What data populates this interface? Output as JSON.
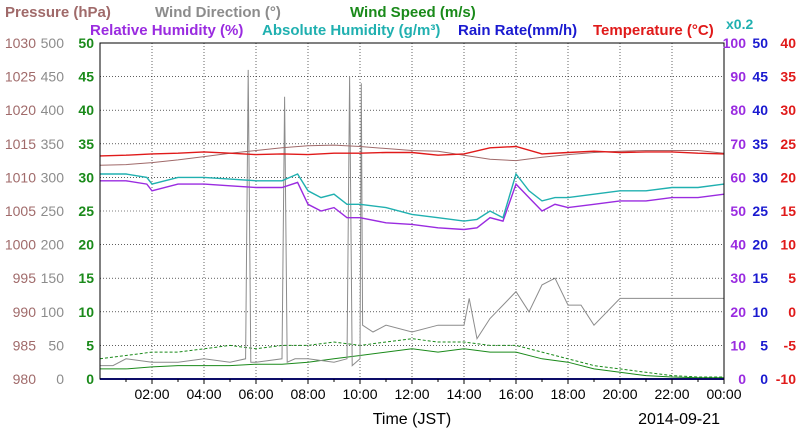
{
  "header": {
    "row1": [
      {
        "key": "pressure",
        "text": "Pressure (hPa)",
        "color": "#a06a6a"
      },
      {
        "key": "wind_direction",
        "text": "Wind Direction (°)",
        "color": "#8c8c8c"
      },
      {
        "key": "wind_speed",
        "text": "Wind Speed (m/s)",
        "color": "#1a8a1a"
      }
    ],
    "row2": [
      {
        "key": "relative_humidity",
        "text": "Relative Humidity (%)",
        "color": "#9a2be0"
      },
      {
        "key": "absolute_humidity",
        "text": "Absolute Humidity (g/m³)",
        "color": "#20b0b0"
      },
      {
        "key": "rain_rate",
        "text": "Rain Rate(mm/h)",
        "color": "#1a1ad0"
      },
      {
        "key": "temperature",
        "text": "Temperature (°C)",
        "color": "#e01a1a"
      }
    ],
    "abs_humidity_scale": {
      "text": "x0.2",
      "color": "#20b0b0"
    }
  },
  "x_axis": {
    "label": "Time (JST)",
    "date": "2014-09-21",
    "tick_labels": [
      "02:00",
      "04:00",
      "06:00",
      "08:00",
      "10:00",
      "12:00",
      "14:00",
      "16:00",
      "18:00",
      "20:00",
      "22:00",
      "00:00"
    ]
  },
  "left_axes": [
    {
      "key": "pressure",
      "color": "#a06a6a",
      "ticks": [
        "980",
        "985",
        "990",
        "995",
        "1000",
        "1005",
        "1010",
        "1015",
        "1020",
        "1025",
        "1030"
      ]
    },
    {
      "key": "wind_direction",
      "color": "#8c8c8c",
      "ticks": [
        "0",
        "50",
        "100",
        "150",
        "200",
        "250",
        "300",
        "350",
        "400",
        "450",
        "500"
      ]
    },
    {
      "key": "wind_speed",
      "color": "#1a8a1a",
      "ticks": [
        "0",
        "5",
        "10",
        "15",
        "20",
        "25",
        "30",
        "35",
        "40",
        "45",
        "50"
      ]
    }
  ],
  "right_axes": [
    {
      "key": "humidity",
      "color": "#9a2be0",
      "ticks": [
        "0",
        "10",
        "20",
        "30",
        "40",
        "50",
        "60",
        "70",
        "80",
        "90",
        "100"
      ]
    },
    {
      "key": "rain_rate",
      "color": "#1a1ad0",
      "ticks": [
        "0",
        "5",
        "10",
        "15",
        "20",
        "25",
        "30",
        "35",
        "40",
        "45",
        "50"
      ]
    },
    {
      "key": "temperature",
      "color": "#e01a1a",
      "ticks": [
        "-10",
        "-5",
        "0",
        "5",
        "10",
        "15",
        "20",
        "25",
        "30",
        "35",
        "40"
      ]
    }
  ],
  "chart_data": {
    "type": "line",
    "x_range": [
      "2014-09-21 00:00",
      "2014-09-22 00:00"
    ],
    "x_unit": "hour",
    "grid": true,
    "axes_ranges": {
      "pressure": [
        980,
        1030
      ],
      "wind_direction": [
        0,
        500
      ],
      "wind_speed": [
        0,
        50
      ],
      "humidity": [
        0,
        100
      ],
      "rain_rate": [
        0,
        50
      ],
      "temperature": [
        -10,
        40
      ]
    },
    "series": [
      {
        "name": "Temperature",
        "axis": "temperature",
        "color": "#e01a1a",
        "x": [
          0,
          1,
          2,
          3,
          4,
          5,
          6,
          7,
          8,
          9,
          10,
          11,
          12,
          13,
          14,
          15,
          16,
          17,
          18,
          19,
          20,
          21,
          22,
          23,
          24
        ],
        "y": [
          23.2,
          23.3,
          23.5,
          23.6,
          23.8,
          23.6,
          23.4,
          23.5,
          23.4,
          23.6,
          23.6,
          23.7,
          23.7,
          23.3,
          23.5,
          24.4,
          24.6,
          23.5,
          23.7,
          23.9,
          23.7,
          23.8,
          23.8,
          23.6,
          23.5
        ]
      },
      {
        "name": "Pressure",
        "axis": "pressure",
        "color": "#a06a6a",
        "x": [
          0,
          1,
          2,
          3,
          4,
          5,
          6,
          7,
          8,
          9,
          10,
          11,
          12,
          13,
          14,
          15,
          16,
          17,
          18,
          19,
          20,
          21,
          22,
          23,
          24
        ],
        "y": [
          1011.8,
          1011.9,
          1012.2,
          1012.6,
          1013.1,
          1013.6,
          1014.0,
          1014.4,
          1014.7,
          1014.8,
          1014.6,
          1014.3,
          1014.0,
          1013.9,
          1013.3,
          1012.7,
          1012.5,
          1013.0,
          1013.4,
          1013.7,
          1013.9,
          1014.0,
          1014.0,
          1014.0,
          1013.6
        ]
      },
      {
        "name": "Absolute Humidity",
        "axis": "humidity",
        "color": "#20b0b0",
        "x": [
          0,
          1,
          1.8,
          2,
          3,
          4,
          5,
          6,
          7,
          7.6,
          8,
          8.5,
          9,
          9.5,
          10,
          11,
          12,
          13,
          14,
          14.5,
          15,
          15.5,
          16,
          16.5,
          17,
          17.5,
          18,
          19,
          20,
          21,
          22,
          23,
          24
        ],
        "y": [
          61,
          61,
          60,
          58,
          60,
          60,
          59.5,
          59,
          59,
          61,
          56,
          54,
          55,
          52,
          52,
          51,
          49,
          48,
          47,
          47.5,
          50,
          48,
          61,
          56,
          53,
          54,
          54,
          55,
          56,
          56,
          57,
          57,
          58
        ]
      },
      {
        "name": "Relative Humidity",
        "axis": "humidity",
        "color": "#9a2be0",
        "x": [
          0,
          1,
          1.8,
          2,
          3,
          4,
          5,
          6,
          7,
          7.6,
          8,
          8.5,
          9,
          9.5,
          10,
          11,
          12,
          13,
          14,
          14.5,
          15,
          15.5,
          16,
          16.5,
          17,
          17.5,
          18,
          19,
          20,
          21,
          22,
          23,
          24
        ],
        "y": [
          59,
          59,
          58,
          56,
          58,
          58,
          57.5,
          57,
          57,
          58.5,
          52,
          50,
          51,
          48,
          48,
          46.5,
          46,
          45,
          44.5,
          45,
          48,
          47,
          58,
          54,
          50,
          52,
          51,
          52,
          53,
          53,
          54,
          54,
          55
        ]
      },
      {
        "name": "Wind Direction",
        "axis": "wind_direction",
        "color": "#8c8c8c",
        "x": [
          0,
          0.5,
          1,
          2,
          3,
          4,
          5,
          5.6,
          5.7,
          5.8,
          6,
          7,
          7.1,
          7.2,
          7.5,
          8,
          9,
          9.5,
          9.6,
          9.7,
          10,
          10.05,
          10.1,
          10.5,
          11,
          12,
          13,
          14,
          14.2,
          14.5,
          15,
          15.5,
          16,
          16.5,
          17,
          17.5,
          18,
          18.5,
          19,
          20,
          21,
          22,
          23,
          24
        ],
        "y": [
          20,
          20,
          30,
          25,
          25,
          30,
          25,
          30,
          460,
          25,
          25,
          30,
          420,
          25,
          30,
          30,
          25,
          30,
          450,
          20,
          30,
          440,
          80,
          70,
          80,
          70,
          80,
          80,
          120,
          60,
          90,
          110,
          130,
          100,
          140,
          150,
          110,
          110,
          80,
          120,
          120,
          120,
          120,
          120
        ]
      },
      {
        "name": "Wind Speed",
        "axis": "wind_speed",
        "color": "#1a8a1a",
        "x": [
          0,
          1,
          2,
          3,
          4,
          5,
          6,
          7,
          8,
          9,
          10,
          11,
          12,
          13,
          14,
          15,
          16,
          17,
          18,
          19,
          20,
          21,
          22,
          23,
          24
        ],
        "y": [
          1.5,
          1.5,
          1.8,
          2,
          2,
          2,
          2.2,
          2.2,
          2.5,
          3,
          3.5,
          4,
          4.5,
          4,
          4.5,
          4,
          4,
          3,
          2.5,
          1.5,
          1,
          0.5,
          0.3,
          0.2,
          0.2
        ]
      },
      {
        "name": "Wind Speed (gust)",
        "axis": "wind_speed",
        "color": "#1a8a1a",
        "x": [
          0,
          1,
          2,
          3,
          4,
          5,
          6,
          7,
          8,
          9,
          10,
          11,
          12,
          13,
          14,
          15,
          16,
          17,
          18,
          19,
          20,
          21,
          22,
          23,
          24
        ],
        "y": [
          3,
          3.5,
          4,
          4,
          4.5,
          5,
          4.5,
          5,
          5,
          5.5,
          5,
          5.5,
          6,
          5.5,
          5.5,
          5,
          5,
          4,
          3,
          2,
          1.5,
          1,
          0.5,
          0.3,
          0.3
        ]
      },
      {
        "name": "Rain Rate",
        "axis": "rain_rate",
        "color": "#1a1ad0",
        "x": [
          0,
          24
        ],
        "y": [
          0,
          0
        ]
      }
    ]
  }
}
